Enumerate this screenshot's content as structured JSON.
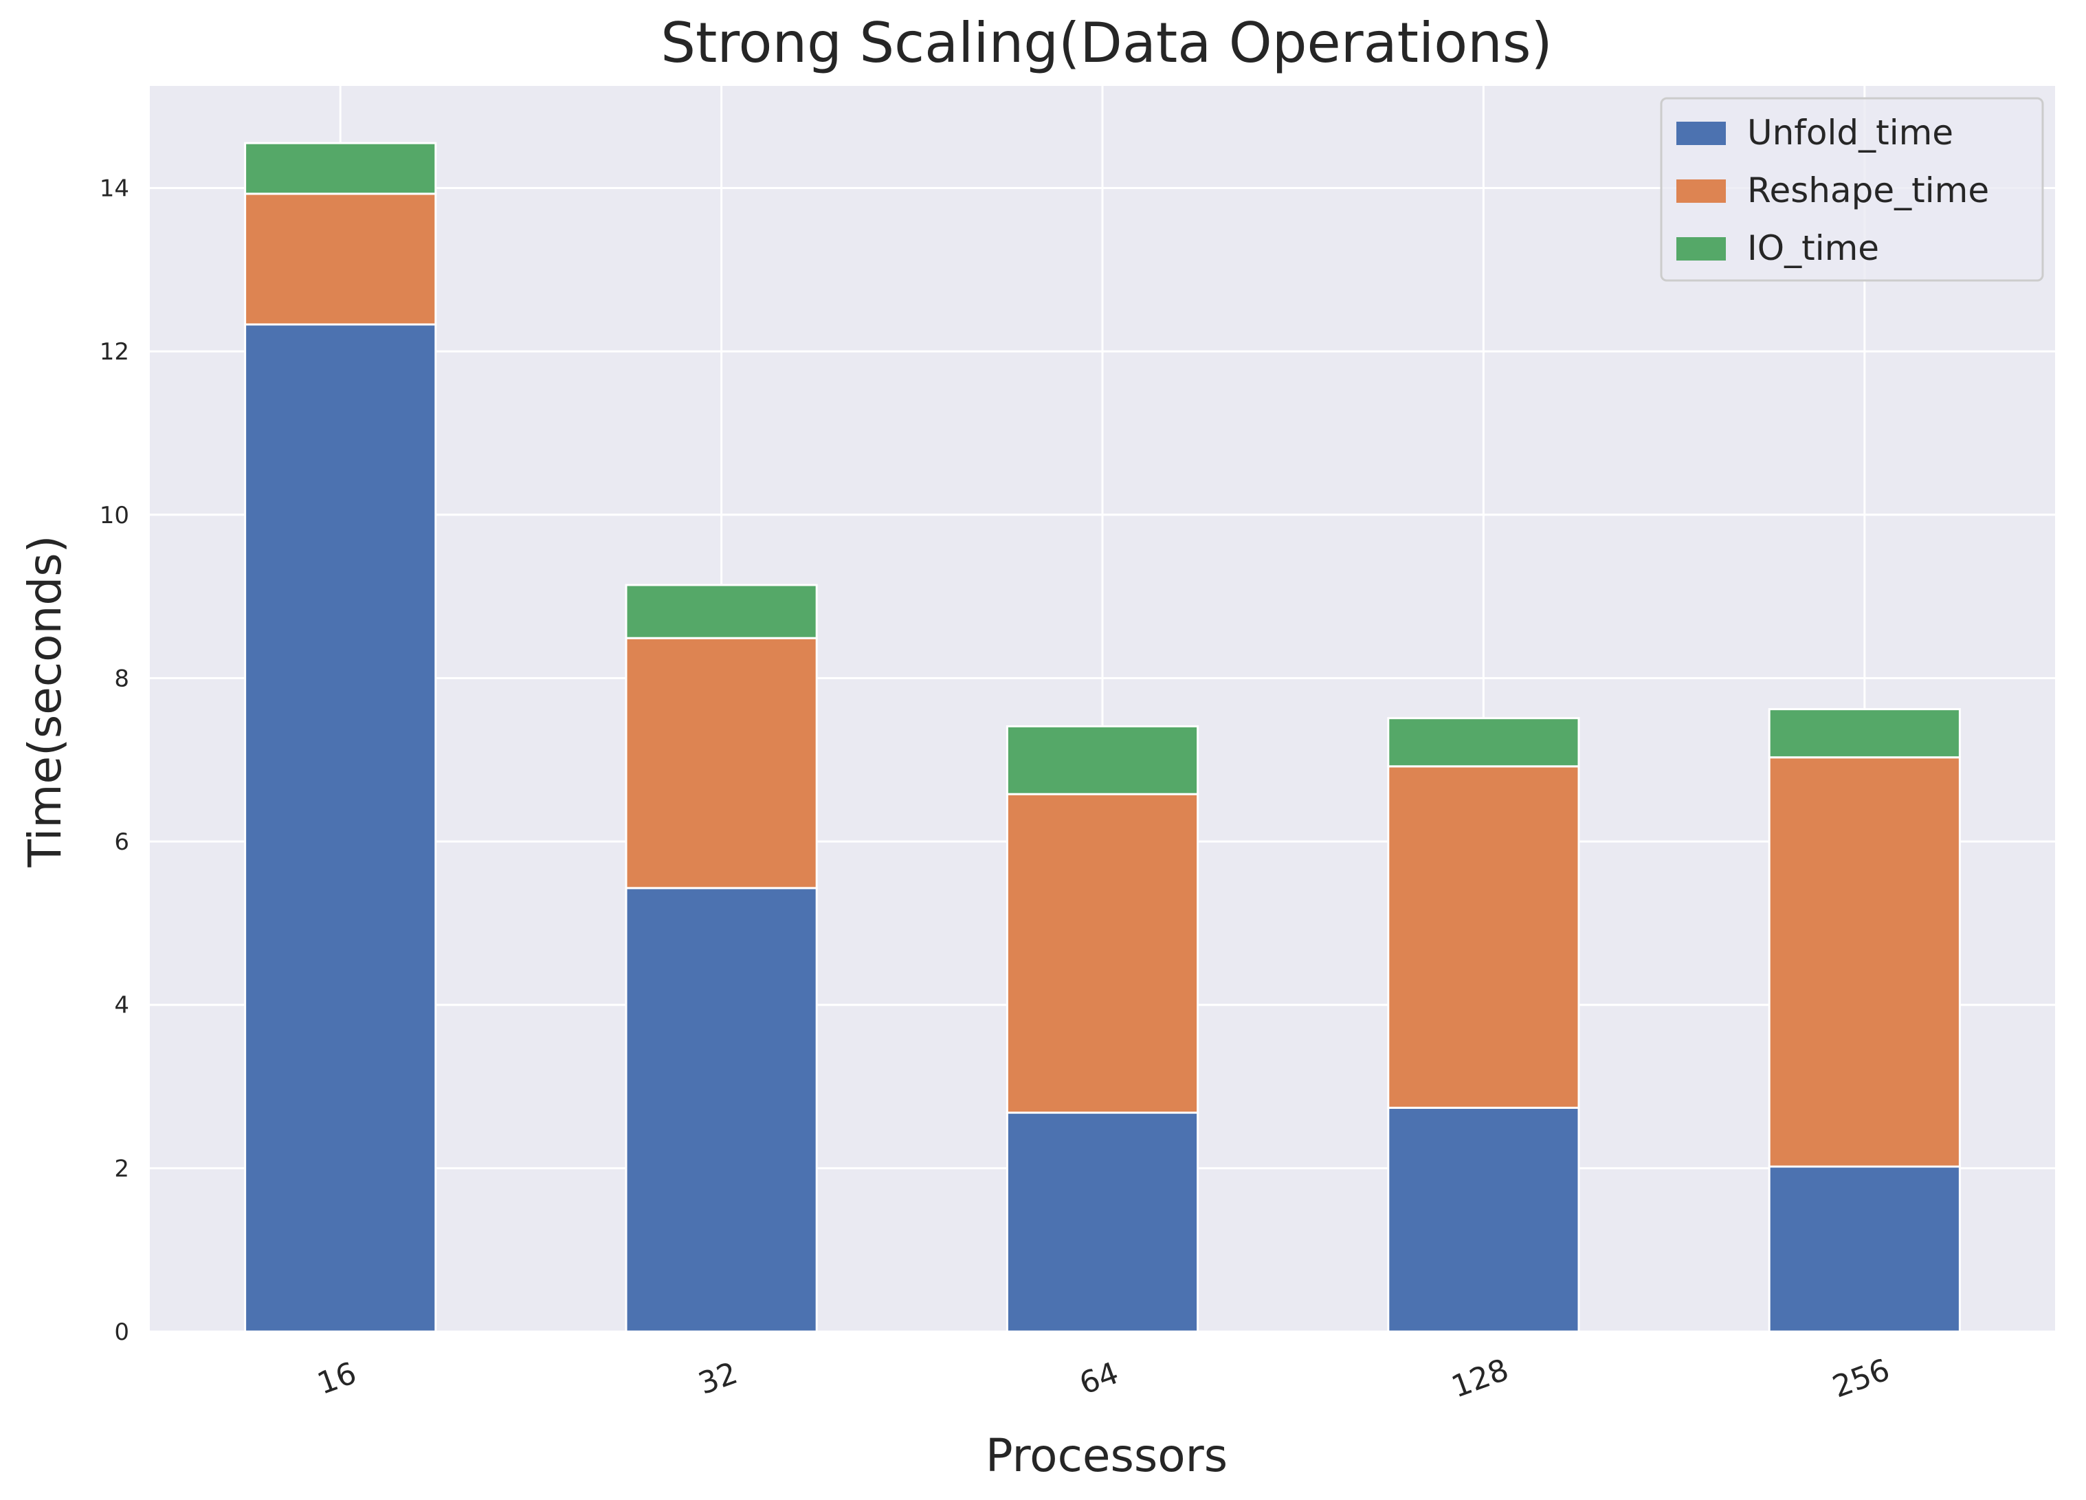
{
  "chart_data": {
    "type": "bar",
    "stacked": true,
    "title": "Strong Scaling(Data Operations)",
    "xlabel": "Processors",
    "ylabel": "Time(seconds)",
    "categories": [
      "16",
      "32",
      "64",
      "128",
      "256"
    ],
    "series": [
      {
        "name": "Unfold_time",
        "color": "#4c72b0",
        "values": [
          12.33,
          5.43,
          2.68,
          2.74,
          2.02
        ]
      },
      {
        "name": "Reshape_time",
        "color": "#dd8452",
        "values": [
          1.6,
          3.06,
          3.9,
          4.18,
          5.01
        ]
      },
      {
        "name": "IO_time",
        "color": "#55a868",
        "values": [
          0.62,
          0.65,
          0.83,
          0.59,
          0.59
        ]
      }
    ],
    "yticks": [
      0,
      2,
      4,
      6,
      8,
      10,
      12,
      14
    ],
    "ylim": [
      0,
      15.25
    ],
    "grid": true,
    "legend_position": "top-right",
    "background_color": "#eaeaf2",
    "grid_color": "#ffffff"
  }
}
